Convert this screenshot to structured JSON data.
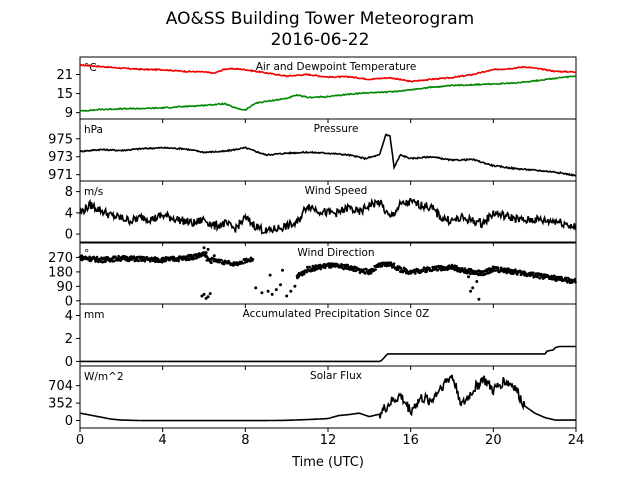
{
  "figure": {
    "title_line1": "AO&SS Building Tower Meteorogram",
    "title_line2": "2016-06-22",
    "xlabel": "Time (UTC)"
  },
  "chart_data": [
    {
      "type": "line",
      "title": "Air and Dewpoint Temperature",
      "unit": "°C",
      "xlim": [
        0,
        24
      ],
      "ylim": [
        7,
        26.5
      ],
      "yticks": [
        9,
        15,
        21
      ],
      "series": [
        {
          "color": "#ee0000",
          "kind": "line",
          "x": [
            0,
            1,
            2,
            3,
            4,
            5,
            6,
            6.5,
            7,
            7.5,
            8,
            9,
            10,
            11,
            12,
            13,
            14,
            15,
            16,
            17,
            18,
            19,
            20,
            21,
            21.5,
            22,
            23,
            24
          ],
          "y": [
            24,
            23.5,
            23,
            22.6,
            22.5,
            22,
            21.8,
            21.4,
            22.7,
            22.8,
            22.5,
            21.5,
            20.5,
            21,
            20.2,
            20.3,
            19.5,
            20,
            18.8,
            19.5,
            20,
            21,
            22.5,
            23,
            23.4,
            23,
            22,
            21.8
          ]
        },
        {
          "color": "#008800",
          "kind": "line",
          "x": [
            0,
            1,
            2,
            3,
            4,
            5,
            6,
            7,
            7.5,
            8,
            8.5,
            9,
            10,
            10.5,
            11,
            12,
            13,
            14,
            15,
            16,
            17,
            18,
            19,
            20,
            21,
            22,
            23,
            24
          ],
          "y": [
            9.5,
            10,
            10.2,
            10.3,
            10.5,
            10.9,
            11.3,
            11.8,
            10.5,
            9.8,
            12,
            12.5,
            13.5,
            14.5,
            13.8,
            14,
            14.8,
            15.3,
            15.5,
            16.2,
            17,
            17.5,
            17.8,
            18,
            18.3,
            19,
            19.8,
            20.5
          ]
        }
      ]
    },
    {
      "type": "line",
      "title": "Pressure",
      "unit": "hPa",
      "xlim": [
        0,
        24
      ],
      "ylim": [
        970.3,
        977.2
      ],
      "yticks": [
        971,
        973,
        975
      ],
      "series": [
        {
          "color": "#000000",
          "kind": "line",
          "x": [
            0,
            1,
            2,
            3,
            4,
            5,
            6,
            7,
            8,
            9,
            10,
            11,
            12,
            13,
            13.8,
            14.5,
            14.8,
            15,
            15.2,
            15.5,
            16,
            17,
            18,
            19,
            20,
            21,
            22,
            23,
            24
          ],
          "y": [
            973.6,
            973.8,
            973.7,
            973.9,
            974,
            973.9,
            973.5,
            973.6,
            974,
            973.2,
            973.4,
            973.5,
            973.4,
            973.2,
            972.8,
            973.2,
            975.5,
            975.3,
            971.8,
            973.2,
            972.8,
            973,
            972.6,
            972.7,
            972,
            971.7,
            971.5,
            971.3,
            970.9
          ]
        }
      ]
    },
    {
      "type": "line",
      "title": "Wind Speed",
      "unit": "m/s",
      "xlim": [
        0,
        24
      ],
      "ylim": [
        -1.5,
        10
      ],
      "yticks": [
        0,
        4,
        8
      ],
      "series": [
        {
          "color": "#000000",
          "kind": "line",
          "x": [
            0,
            0.5,
            1,
            1.5,
            2,
            2.5,
            3,
            3.5,
            4,
            4.5,
            5,
            5.5,
            6,
            6.5,
            7,
            7.5,
            8,
            8.5,
            9,
            9.5,
            10,
            10.5,
            11,
            11.5,
            12,
            12.5,
            13,
            13.5,
            14,
            14.5,
            15,
            15.5,
            16,
            16.5,
            17,
            17.5,
            18,
            18.5,
            19,
            19.5,
            20,
            20.5,
            21,
            21.5,
            22,
            22.5,
            23,
            23.5,
            24
          ],
          "y": [
            4,
            5.5,
            4.5,
            3.5,
            3,
            2.5,
            3.2,
            2.8,
            3.5,
            3,
            2.5,
            2,
            2.8,
            1.5,
            2,
            1,
            3,
            1.5,
            0.5,
            1,
            1.5,
            2,
            5.5,
            4.5,
            4,
            4,
            5,
            4,
            5.5,
            6,
            3,
            5.5,
            6,
            5.5,
            5,
            3,
            2.5,
            3,
            2.5,
            2,
            4,
            3.5,
            3,
            2.5,
            2.8,
            2.5,
            2.5,
            2,
            1.2
          ]
        }
      ]
    },
    {
      "type": "scatter",
      "title": "Wind Direction",
      "unit": "°",
      "xlim": [
        0,
        24
      ],
      "ylim": [
        -20,
        360
      ],
      "yticks": [
        0,
        90,
        180,
        270
      ],
      "series": [
        {
          "color": "#000000",
          "kind": "dense",
          "x": [
            0,
            1,
            2,
            3,
            4,
            5,
            5.5,
            6,
            6.2,
            6.5,
            7,
            7.5,
            8,
            8.4,
            10.5,
            11,
            12,
            13,
            13.5,
            14,
            14.5,
            15,
            15.5,
            16,
            17,
            18,
            18.5,
            19,
            19.5,
            20,
            21,
            22,
            23,
            24
          ],
          "y": [
            270,
            255,
            265,
            260,
            255,
            265,
            275,
            290,
            255,
            250,
            240,
            230,
            250,
            260,
            150,
            195,
            220,
            210,
            190,
            180,
            220,
            230,
            195,
            180,
            200,
            210,
            190,
            180,
            170,
            200,
            180,
            160,
            140,
            120
          ]
        },
        {
          "color": "#000000",
          "kind": "points",
          "x": [
            5.9,
            6,
            6.1,
            6.2,
            6.3,
            6.1,
            6,
            6.2,
            6.5,
            8.5,
            8.8,
            9.1,
            9.3,
            9.5,
            9.7,
            10,
            10.2,
            10.4,
            9.2,
            9.8,
            18.8,
            19,
            19.3,
            19.2,
            18.9,
            20,
            20.5,
            21.5
          ],
          "y": [
            30,
            40,
            15,
            25,
            45,
            300,
            330,
            320,
            280,
            80,
            50,
            60,
            40,
            70,
            100,
            30,
            60,
            90,
            160,
            190,
            150,
            80,
            10,
            120,
            60,
            200,
            190,
            180
          ]
        }
      ]
    },
    {
      "type": "line",
      "title": "Accumulated Precipitation Since 0Z",
      "unit": "mm",
      "xlim": [
        0,
        24
      ],
      "ylim": [
        -0.4,
        5
      ],
      "yticks": [
        0,
        2,
        4
      ],
      "series": [
        {
          "color": "#000000",
          "kind": "line",
          "x": [
            0,
            14.5,
            14.6,
            14.7,
            14.8,
            14.9,
            22.5,
            22.6,
            22.9,
            23,
            23.2,
            24
          ],
          "y": [
            0,
            0,
            0.1,
            0.3,
            0.5,
            0.65,
            0.65,
            0.9,
            1.0,
            1.2,
            1.3,
            1.3
          ]
        }
      ]
    },
    {
      "type": "line",
      "title": "Solar Flux",
      "unit": "W/m^2",
      "xlim": [
        0,
        24
      ],
      "ylim": [
        -150,
        1100
      ],
      "yticks": [
        0,
        352,
        704
      ],
      "series": [
        {
          "color": "#000000",
          "kind": "line",
          "x": [
            0,
            0.5,
            1,
            1.5,
            2,
            3,
            5,
            7,
            9,
            10,
            11,
            12,
            12.5,
            13,
            13.5,
            14,
            14.5,
            15,
            15.5,
            16,
            16.5,
            17,
            17.5,
            18,
            18.5,
            19,
            19.5,
            20,
            20.5,
            21,
            21.5,
            22,
            22.5,
            23,
            24
          ],
          "y": [
            150,
            110,
            70,
            30,
            10,
            0,
            0,
            0,
            0,
            5,
            20,
            40,
            100,
            120,
            150,
            80,
            130,
            350,
            500,
            200,
            450,
            400,
            700,
            900,
            300,
            600,
            850,
            600,
            800,
            700,
            300,
            150,
            60,
            10,
            10
          ]
        }
      ]
    }
  ],
  "xaxis": {
    "xlim": [
      0,
      24
    ],
    "xticks": [
      0,
      4,
      8,
      12,
      16,
      20,
      24
    ]
  }
}
